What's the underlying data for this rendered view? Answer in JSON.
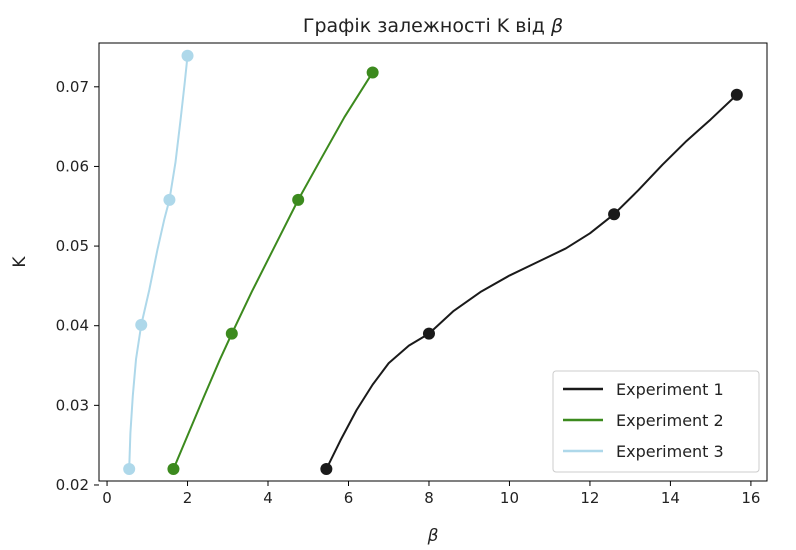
{
  "chart_data": {
    "type": "line",
    "title": "Графік залежності K від β",
    "xlabel": "β",
    "ylabel": "K",
    "xlim": [
      -0.2,
      16.4
    ],
    "ylim": [
      0.0205,
      0.0755
    ],
    "x_ticks": [
      0,
      2,
      4,
      6,
      8,
      10,
      12,
      14,
      16
    ],
    "y_ticks": [
      0.02,
      0.03,
      0.04,
      0.05,
      0.06,
      0.07
    ],
    "x_tick_labels": [
      "0",
      "2",
      "4",
      "6",
      "8",
      "10",
      "12",
      "14",
      "16"
    ],
    "y_tick_labels": [
      "0.02",
      "0.03",
      "0.04",
      "0.05",
      "0.06",
      "0.07"
    ],
    "grid": false,
    "legend_position": "bottom-right",
    "series": [
      {
        "name": "Experiment 1",
        "color": "#1a1a1a",
        "points": [
          [
            5.45,
            0.022
          ],
          [
            8.0,
            0.039
          ],
          [
            12.6,
            0.054
          ],
          [
            15.65,
            0.069
          ]
        ],
        "curve": [
          [
            5.45,
            0.022
          ],
          [
            5.8,
            0.0256
          ],
          [
            6.2,
            0.0294
          ],
          [
            6.6,
            0.0326
          ],
          [
            7.0,
            0.0353
          ],
          [
            7.5,
            0.0375
          ],
          [
            8.0,
            0.039
          ],
          [
            8.6,
            0.0418
          ],
          [
            9.3,
            0.0443
          ],
          [
            10.0,
            0.0463
          ],
          [
            10.7,
            0.048
          ],
          [
            11.4,
            0.0497
          ],
          [
            12.0,
            0.0516
          ],
          [
            12.6,
            0.054
          ],
          [
            13.2,
            0.057
          ],
          [
            13.8,
            0.0602
          ],
          [
            14.4,
            0.0632
          ],
          [
            15.0,
            0.0659
          ],
          [
            15.65,
            0.069
          ]
        ]
      },
      {
        "name": "Experiment 2",
        "color": "#3c8a1e",
        "points": [
          [
            1.65,
            0.022
          ],
          [
            3.1,
            0.039
          ],
          [
            4.75,
            0.0558
          ],
          [
            6.6,
            0.0718
          ]
        ],
        "curve": [
          [
            1.65,
            0.022
          ],
          [
            2.0,
            0.0262
          ],
          [
            2.4,
            0.031
          ],
          [
            2.8,
            0.0357
          ],
          [
            3.1,
            0.039
          ],
          [
            3.6,
            0.0443
          ],
          [
            4.2,
            0.0503
          ],
          [
            4.75,
            0.0558
          ],
          [
            5.3,
            0.0608
          ],
          [
            5.9,
            0.0662
          ],
          [
            6.6,
            0.0718
          ]
        ]
      },
      {
        "name": "Experiment 3",
        "color": "#aed8ea",
        "points": [
          [
            0.55,
            0.022
          ],
          [
            0.85,
            0.0401
          ],
          [
            1.55,
            0.0558
          ],
          [
            2.0,
            0.0739
          ]
        ],
        "curve": [
          [
            0.55,
            0.022
          ],
          [
            0.58,
            0.0265
          ],
          [
            0.64,
            0.0312
          ],
          [
            0.72,
            0.0358
          ],
          [
            0.85,
            0.0401
          ],
          [
            1.05,
            0.0445
          ],
          [
            1.25,
            0.0495
          ],
          [
            1.42,
            0.0533
          ],
          [
            1.55,
            0.0558
          ],
          [
            1.7,
            0.0605
          ],
          [
            1.83,
            0.066
          ],
          [
            1.93,
            0.0705
          ],
          [
            2.0,
            0.0739
          ]
        ]
      }
    ]
  }
}
